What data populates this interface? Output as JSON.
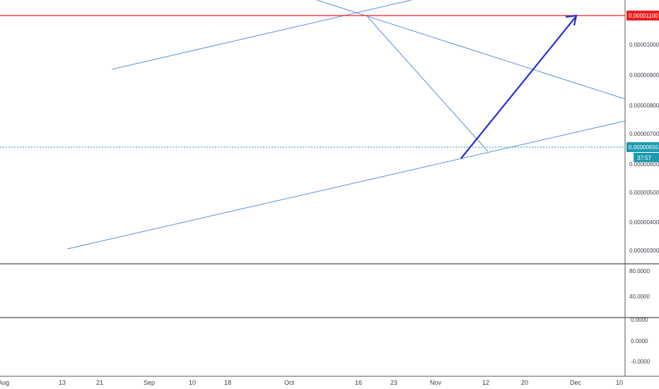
{
  "chart_data": [
    {
      "type": "candlestick",
      "panel": "price",
      "price_ticks": [
        "0.00001000",
        "0.00000900",
        "0.00000800",
        "0.00000700",
        "0.00000600",
        "0.00000500",
        "0.00000400",
        "0.00000300"
      ],
      "x_ticks": [
        "Aug",
        "13",
        "21",
        "Sep",
        "10",
        "18",
        "Oct",
        "16",
        "23",
        "Nov",
        "12",
        "20",
        "Dec",
        "10"
      ],
      "resistance_label": "0.00001100",
      "current_price_label": "0.00000655",
      "countdown_label": "37:57",
      "overlays": [
        "ichimoku-cloud",
        "moving-averages",
        "trendlines",
        "projection-arrow"
      ],
      "colors": {
        "up": "#26a69a",
        "down": "#ef5350",
        "resistance": "#e91e1e",
        "trend": "#5b8fd9",
        "arrow": "#2a2fd0",
        "current": "#1c9bb0"
      }
    },
    {
      "type": "line",
      "panel": "rsi",
      "ticks": [
        "80.0000",
        "40.0000"
      ],
      "band": [
        30,
        70
      ],
      "color": "#9c4fd0",
      "band_color": "#e9d6fb"
    },
    {
      "type": "histogram",
      "panel": "macd",
      "ticks": [
        "0.0000",
        "0.0000",
        "-0.0000"
      ],
      "colors": {
        "macd": "#2f7bd8",
        "signal": "#f07a2a",
        "hist_up": "#26a69a",
        "hist_down": "#ef5350"
      }
    }
  ]
}
